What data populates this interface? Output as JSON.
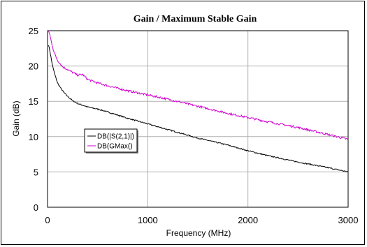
{
  "chart_data": {
    "type": "line",
    "title": "Gain / Maximum Stable Gain",
    "xlabel": "Frequency (MHz)",
    "ylabel": "Gain (dB)",
    "xlim": [
      0,
      3000
    ],
    "ylim": [
      0,
      25
    ],
    "x_ticks": [
      0,
      1000,
      2000,
      3000
    ],
    "y_ticks": [
      0,
      5,
      10,
      15,
      20,
      25
    ],
    "grid": true,
    "legend_position": "left-middle",
    "series": [
      {
        "name": "DB(|S(2,1)|)",
        "color": "#000000",
        "noise": 0.08,
        "x": [
          10,
          25,
          50,
          75,
          100,
          130,
          160,
          200,
          250,
          300,
          400,
          500,
          600,
          800,
          1000,
          1200,
          1500,
          1800,
          2000,
          2200,
          2500,
          2800,
          3000
        ],
        "y": [
          23.0,
          22.0,
          20.0,
          18.7,
          17.6,
          16.9,
          16.3,
          15.7,
          15.1,
          14.7,
          14.2,
          13.9,
          13.5,
          12.6,
          11.8,
          11.0,
          9.8,
          8.8,
          8.0,
          7.3,
          6.4,
          5.6,
          5.0
        ]
      },
      {
        "name": "DB(GMax()",
        "color": "#d000d0",
        "noise": 0.15,
        "x": [
          10,
          20,
          40,
          60,
          80,
          100,
          150,
          200,
          250,
          300,
          350,
          400,
          500,
          600,
          800,
          1000,
          1200,
          1500,
          1800,
          2000,
          2200,
          2500,
          2800,
          3000
        ],
        "y": [
          25.0,
          24.6,
          23.3,
          22.2,
          21.4,
          20.8,
          19.9,
          19.5,
          19.1,
          18.7,
          18.8,
          18.1,
          17.6,
          17.2,
          16.5,
          15.9,
          15.3,
          14.3,
          13.3,
          12.7,
          12.1,
          11.3,
          10.3,
          9.6
        ]
      }
    ]
  }
}
